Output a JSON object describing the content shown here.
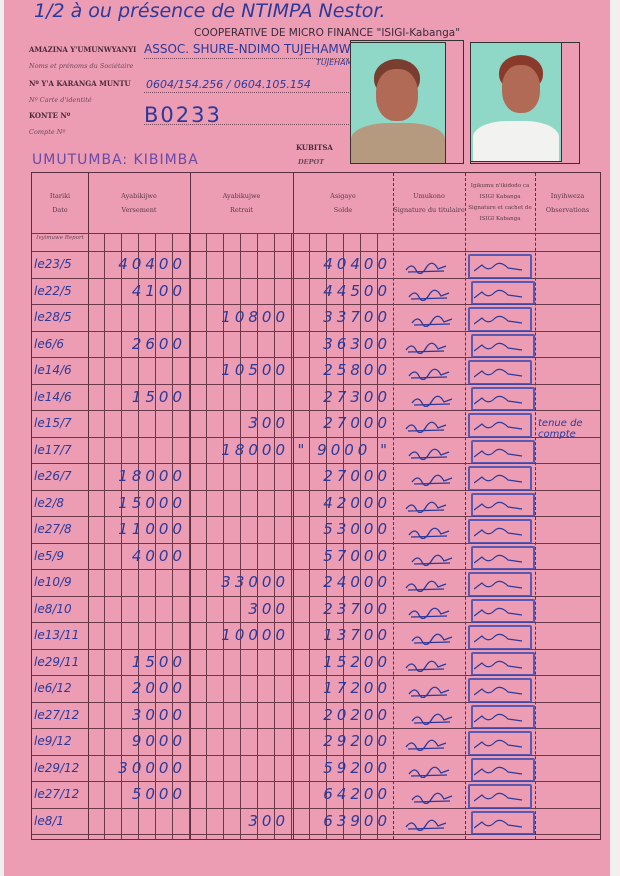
{
  "annotation": "1/2 à ou présence de NTIMPA Nestor.",
  "institution": "COOPERATIVE DE MICRO FINANCE \"ISIGI-Kabanga\"",
  "fields": {
    "name_label": "AMAZINA Y'UMUNWYANYI",
    "name_sub": "Noms et prénoms du Sociétaire",
    "name_value": "ASSOC. SHURE-NDIMO TUJEHAMWE",
    "name_extra": "TUJEHAMWE MBERE",
    "id_label": "Nº Y'A KARANGA MUNTU",
    "id_sub": "Nº Carte d'identité",
    "id_value": "0604/154.256 / 0604.105.154",
    "account_label": "KONTE Nº",
    "account_sub": "Compte Nº",
    "account_value": "B0233",
    "location": "UMUTUMBA: KIBIMBA",
    "deposit_label": "KUBITSA",
    "deposit_sub": "DEPOT"
  },
  "table": {
    "headers": [
      {
        "l1": "Itariki",
        "l2": "Date"
      },
      {
        "l1": "Ayabikijwe",
        "l2": "Versement"
      },
      {
        "l1": "Ayabikujwe",
        "l2": "Retrait"
      },
      {
        "l1": "Asigaye",
        "l2": "Solde"
      },
      {
        "l1": "Umukono",
        "l2": "Signature du titulaire"
      },
      {
        "l1": "Igikumu n'ikidodo ca ISIGI Kabanga",
        "l2": "Signature et cachet de ISIGI Kabanga"
      },
      {
        "l1": "Inyihweza",
        "l2": "Observations"
      }
    ],
    "report_label": "Ivyimuwe Report",
    "rows": [
      {
        "date": "le23/5",
        "versement": "40400",
        "retrait": "",
        "solde": "40400"
      },
      {
        "date": "le22/5",
        "versement": "4100",
        "retrait": "",
        "solde": "44500"
      },
      {
        "date": "le28/5",
        "versement": "",
        "retrait": "10800",
        "solde": "33700"
      },
      {
        "date": "le6/6",
        "versement": "2600",
        "retrait": "",
        "solde": "36300"
      },
      {
        "date": "le14/6",
        "versement": "",
        "retrait": "10500",
        "solde": "25800"
      },
      {
        "date": "le14/6",
        "versement": "1500",
        "retrait": "",
        "solde": "27300"
      },
      {
        "date": "le15/7",
        "versement": "",
        "retrait": "300",
        "solde": "27000",
        "observation": "tenue de compte"
      },
      {
        "date": "le17/7",
        "versement": "",
        "retrait": "18000",
        "solde": "\" 9000 \""
      },
      {
        "date": "le26/7",
        "versement": "18000",
        "retrait": "",
        "solde": "27000"
      },
      {
        "date": "le2/8",
        "versement": "15000",
        "retrait": "",
        "solde": "42000"
      },
      {
        "date": "le27/8",
        "versement": "11000",
        "retrait": "",
        "solde": "53000"
      },
      {
        "date": "le5/9",
        "versement": "4000",
        "retrait": "",
        "solde": "57000"
      },
      {
        "date": "le10/9",
        "versement": "",
        "retrait": "33000",
        "solde": "24000"
      },
      {
        "date": "le8/10",
        "versement": "",
        "retrait": "300",
        "solde": "23700"
      },
      {
        "date": "le13/11",
        "versement": "",
        "retrait": "10000",
        "solde": "13700"
      },
      {
        "date": "le29/11",
        "versement": "1500",
        "retrait": "",
        "solde": "15200"
      },
      {
        "date": "le6/12",
        "versement": "2000",
        "retrait": "",
        "solde": "17200"
      },
      {
        "date": "le27/12",
        "versement": "3000",
        "retrait": "",
        "solde": "20200"
      },
      {
        "date": "le9/12",
        "versement": "9000",
        "retrait": "",
        "solde": "29200"
      },
      {
        "date": "le29/12",
        "versement": "30000",
        "retrait": "",
        "solde": "59200"
      },
      {
        "date": "le27/12",
        "versement": "5000",
        "retrait": "",
        "solde": "64200"
      },
      {
        "date": "le8/1",
        "versement": "",
        "retrait": "300",
        "solde": "63900"
      }
    ]
  },
  "colors": {
    "paper": "#ec9cb3",
    "ink": "#2b3a9a",
    "stamp": "#3548b0"
  }
}
